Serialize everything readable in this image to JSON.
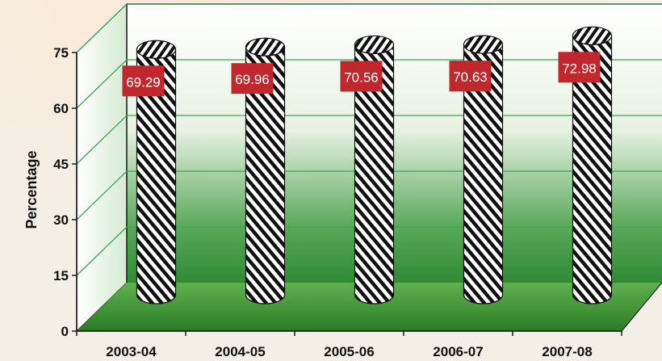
{
  "chart_data": {
    "type": "bar",
    "title": "",
    "xlabel": "",
    "ylabel": "Percentage",
    "categories": [
      "2003-04",
      "2004-05",
      "2005-06",
      "2006-07",
      "2007-08"
    ],
    "values": [
      69.29,
      69.96,
      70.56,
      70.63,
      72.98
    ],
    "data_labels": [
      "69.29",
      "69.96",
      "70.56",
      "70.63",
      "72.98"
    ],
    "yticks": [
      0,
      15,
      30,
      45,
      60,
      75
    ],
    "ylim": [
      0,
      75
    ],
    "grid": true,
    "legend": "none",
    "colors": {
      "gridline": "#3aa655",
      "floor": "#2e8b2e",
      "label_box": "#c0282d",
      "bar_pattern_dark": "#111111",
      "bar_pattern_light": "#ffffff"
    }
  }
}
